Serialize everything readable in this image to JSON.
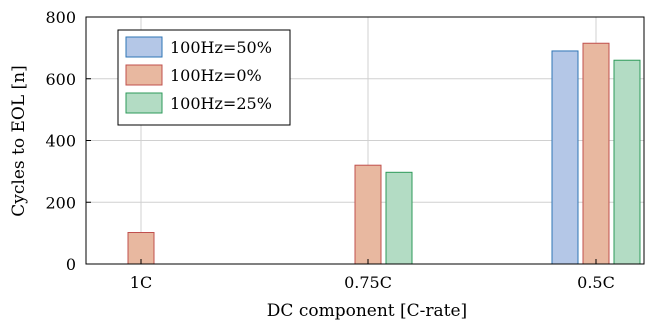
{
  "chart_data": {
    "type": "bar",
    "title": "",
    "xlabel": "DC component [C-rate]",
    "ylabel": "Cycles to EOL [n]",
    "categories": [
      "1C",
      "0.75C",
      "0.5C"
    ],
    "ylim": [
      0,
      800
    ],
    "yticks": [
      0,
      200,
      400,
      600,
      800
    ],
    "grid": true,
    "legend_position": "top-left",
    "series": [
      {
        "name": "100Hz=50%",
        "values": [
          null,
          null,
          690
        ],
        "fill": "#b4c7e7",
        "stroke": "#2e75b6"
      },
      {
        "name": "100Hz=0%",
        "values": [
          102,
          320,
          715
        ],
        "fill": "#e8b8a0",
        "stroke": "#c0504d"
      },
      {
        "name": "100Hz=25%",
        "values": [
          null,
          297,
          660
        ],
        "fill": "#b3dcc4",
        "stroke": "#2e9a5a"
      }
    ]
  }
}
